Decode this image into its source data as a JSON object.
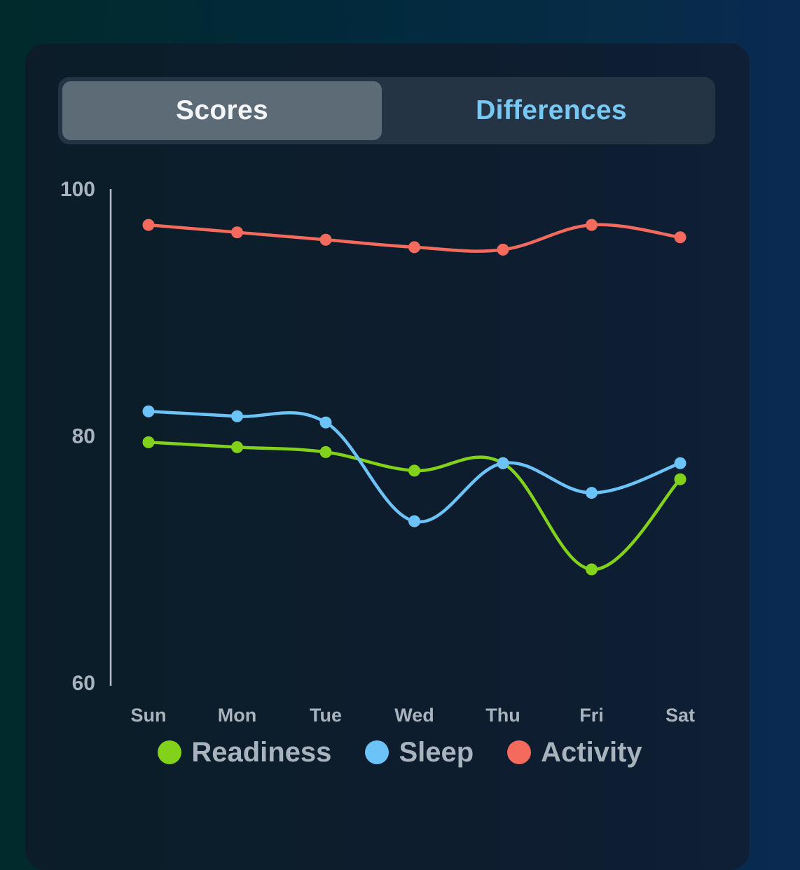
{
  "tabs": [
    {
      "label": "Scores",
      "active": true
    },
    {
      "label": "Differences",
      "active": false
    }
  ],
  "chart_data": {
    "type": "line",
    "categories": [
      "Sun",
      "Mon",
      "Tue",
      "Wed",
      "Thu",
      "Fri",
      "Sat"
    ],
    "ylim": [
      60,
      100
    ],
    "yticks": [
      "100",
      "80",
      "60"
    ],
    "series": [
      {
        "name": "Readiness",
        "color": "#82d11a",
        "values": [
          79.5,
          79.1,
          78.7,
          77.2,
          77.8,
          69.2,
          76.5
        ]
      },
      {
        "name": "Sleep",
        "color": "#6cc3f7",
        "values": [
          82.0,
          81.6,
          81.1,
          73.1,
          77.8,
          75.4,
          77.8
        ]
      },
      {
        "name": "Activity",
        "color": "#f46b5e",
        "values": [
          97.1,
          96.5,
          95.9,
          95.3,
          95.1,
          97.1,
          96.1
        ]
      }
    ],
    "grid": false,
    "legend_position": "bottom"
  }
}
